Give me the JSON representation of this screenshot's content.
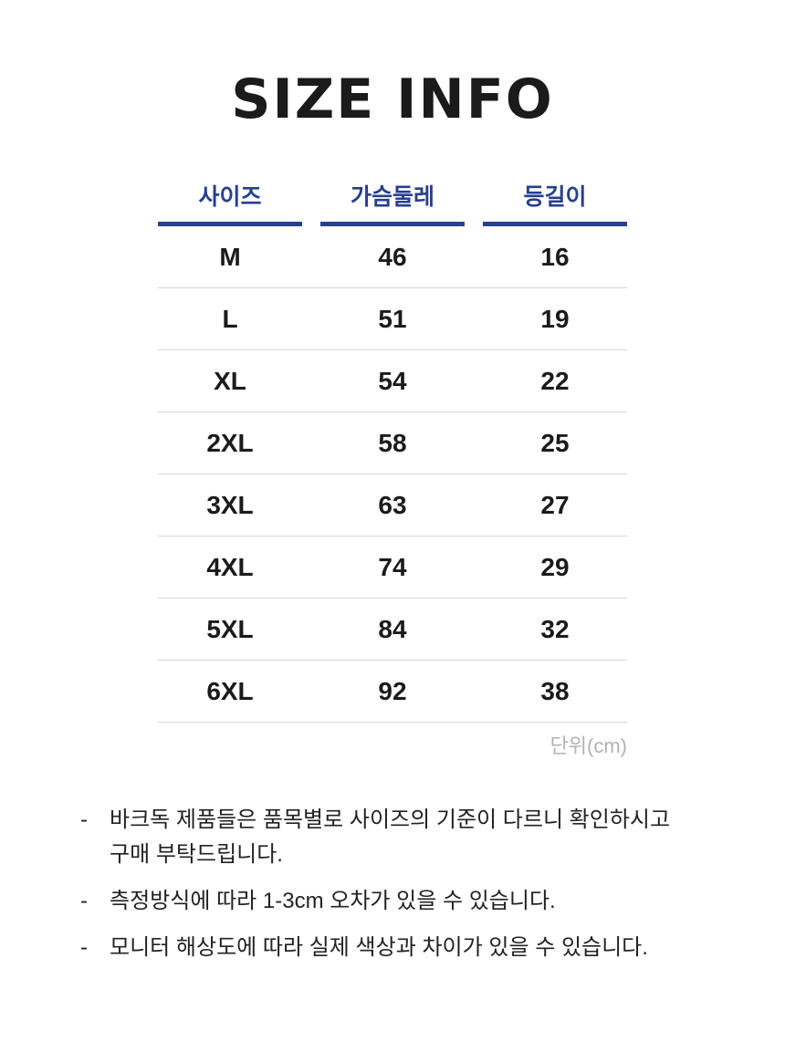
{
  "title": "SIZE INFO",
  "table": {
    "columns": [
      "사이즈",
      "가슴둘레",
      "등길이"
    ],
    "rows": [
      {
        "size": "M",
        "chest": "46",
        "back": "16"
      },
      {
        "size": "L",
        "chest": "51",
        "back": "19"
      },
      {
        "size": "XL",
        "chest": "54",
        "back": "22"
      },
      {
        "size": "2XL",
        "chest": "58",
        "back": "25"
      },
      {
        "size": "3XL",
        "chest": "63",
        "back": "27"
      },
      {
        "size": "4XL",
        "chest": "74",
        "back": "29"
      },
      {
        "size": "5XL",
        "chest": "84",
        "back": "32"
      },
      {
        "size": "6XL",
        "chest": "92",
        "back": "38"
      }
    ],
    "unit_label": "단위(cm)"
  },
  "notes_bullet": "-",
  "notes": [
    "바크독 제품들은 품목별로 사이즈의 기준이 다르니 확인하시고\n구매 부탁드립니다.",
    "측정방식에 따라 1-3cm 오차가 있을 수 있습니다.",
    "모니터 해상도에 따라 실제 색상과 차이가 있을 수 있습니다."
  ],
  "colors": {
    "accent_blue": "#263f8f",
    "text_black": "#1b1b1b",
    "divider_gray": "#d4d4d4",
    "unit_gray": "#b2b2b2"
  }
}
